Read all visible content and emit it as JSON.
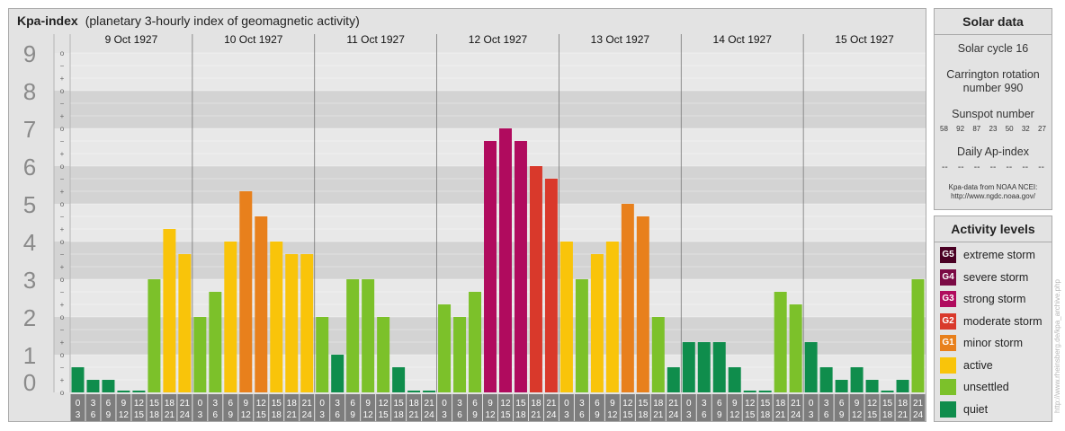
{
  "title": "Kpa-index",
  "subtitle": "(planetary 3-hourly index of geomagnetic activity)",
  "chart_data": {
    "type": "bar",
    "ylim": [
      0,
      9
    ],
    "y_ticks": [
      "0",
      "1",
      "2",
      "3",
      "4",
      "5",
      "6",
      "7",
      "8",
      "9"
    ],
    "minor_ticks": [
      "o",
      "+",
      "−"
    ],
    "days": [
      "9 Oct 1927",
      "10 Oct 1927",
      "11 Oct 1927",
      "12 Oct 1927",
      "13 Oct 1927",
      "14 Oct 1927",
      "15 Oct 1927"
    ],
    "interval_start": [
      "0",
      "3",
      "6",
      "9",
      "12",
      "15",
      "18",
      "21"
    ],
    "interval_end": [
      "3",
      "6",
      "9",
      "12",
      "15",
      "18",
      "21",
      "24"
    ],
    "values": [
      0.667,
      0.333,
      0.333,
      0,
      0,
      3.0,
      4.333,
      3.667,
      2.0,
      2.667,
      4.0,
      5.333,
      4.667,
      4.0,
      3.667,
      3.667,
      2.0,
      1.0,
      3.0,
      3.0,
      2.0,
      0.667,
      0,
      0,
      2.333,
      2.0,
      2.667,
      6.667,
      7.0,
      6.667,
      6.0,
      5.667,
      4.0,
      3.0,
      3.667,
      4.0,
      5.0,
      4.667,
      2.0,
      0.667,
      1.333,
      1.333,
      1.333,
      0.667,
      0,
      0,
      2.667,
      2.333,
      1.333,
      0.667,
      0.333,
      0.667,
      0.333,
      0,
      0.333,
      3.0
    ],
    "grid": true
  },
  "solar": {
    "title": "Solar data",
    "cycle": "Solar cycle 16",
    "carrington_1": "Carrington rotation",
    "carrington_2": "number 990",
    "sunspot_label": "Sunspot number",
    "sunspots": [
      "58",
      "92",
      "87",
      "23",
      "50",
      "32",
      "27"
    ],
    "ap_label": "Daily Ap-index",
    "ap_values": [
      "--",
      "--",
      "--",
      "--",
      "--",
      "--",
      "--"
    ],
    "source_1": "Kpa-data from NOAA NCEI:",
    "source_2": "http://www.ngdc.noaa.gov/"
  },
  "levels": {
    "title": "Activity levels",
    "items": [
      {
        "code": "G5",
        "label": "extreme storm",
        "color": "#4a0024"
      },
      {
        "code": "G4",
        "label": "severe storm",
        "color": "#7b0a45"
      },
      {
        "code": "G3",
        "label": "strong storm",
        "color": "#b00b5e"
      },
      {
        "code": "G2",
        "label": "moderate storm",
        "color": "#d9392b"
      },
      {
        "code": "G1",
        "label": "minor storm",
        "color": "#e8801c"
      },
      {
        "code": "",
        "label": "active",
        "color": "#f9c40a"
      },
      {
        "code": "",
        "label": "unsettled",
        "color": "#7cc12a"
      },
      {
        "code": "",
        "label": "quiet",
        "color": "#0f8d4c"
      }
    ]
  },
  "watermark": "http://www.rheinsberg.de/kpa_archive.php"
}
